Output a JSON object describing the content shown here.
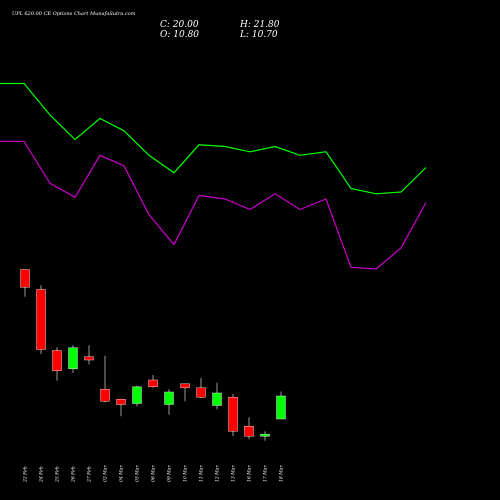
{
  "header": {
    "title": "UPL 620.00 CE Options Chart MunafaSutra.com",
    "ohlc": {
      "open_label": "O: 10.80",
      "high_label": "H: 21.80",
      "low_label": "L: 10.70",
      "close_label": "C: 20.00"
    }
  },
  "colors": {
    "background": "#000000",
    "up": "#00ff00",
    "down": "#ff0000",
    "wick": "#999999",
    "upper_band": "#00ff00",
    "lower_band": "#cc00cc",
    "text": "#ffffff"
  },
  "chart_data": {
    "type": "candlestick",
    "x": [
      "22 Feb",
      "24 Feb",
      "25 Feb",
      "26 Feb",
      "27 Feb",
      "02 Mar",
      "04 Mar",
      "05 Mar",
      "06 Mar",
      "09 Mar",
      "10 Mar",
      "11 Mar",
      "12 Mar",
      "13 Mar",
      "16 Mar",
      "17 Mar",
      "18 Mar"
    ],
    "candles": [
      {
        "date": "22 Feb",
        "open": 70.6,
        "high": 70.6,
        "low": 59.7,
        "close": 63.5
      },
      {
        "date": "24 Feb",
        "open": 62.6,
        "high": 64.3,
        "low": 36.8,
        "close": 38.6
      },
      {
        "date": "25 Feb",
        "open": 38.2,
        "high": 39.5,
        "low": 26.1,
        "close": 30.1
      },
      {
        "date": "26 Feb",
        "open": 30.9,
        "high": 40.3,
        "low": 29.2,
        "close": 39.3
      },
      {
        "date": "27 Feb",
        "open": 35.7,
        "high": 40.3,
        "low": 32.6,
        "close": 34.4
      },
      {
        "date": "02 Mar",
        "open": 22.7,
        "high": 36.1,
        "low": 17.5,
        "close": 17.9
      },
      {
        "date": "04 Mar",
        "open": 18.7,
        "high": 18.7,
        "low": 11.9,
        "close": 16.6
      },
      {
        "date": "05 Mar",
        "open": 17.0,
        "high": 24.1,
        "low": 15.8,
        "close": 23.7
      },
      {
        "date": "06 Mar",
        "open": 26.4,
        "high": 28.4,
        "low": 23.3,
        "close": 23.7
      },
      {
        "date": "09 Mar",
        "open": 16.6,
        "high": 22.7,
        "low": 12.5,
        "close": 21.6
      },
      {
        "date": "10 Mar",
        "open": 24.9,
        "high": 24.9,
        "low": 17.9,
        "close": 23.3
      },
      {
        "date": "11 Mar",
        "open": 23.3,
        "high": 27.2,
        "low": 19.1,
        "close": 19.5
      },
      {
        "date": "12 Mar",
        "open": 16.2,
        "high": 25.3,
        "low": 14.7,
        "close": 21.2
      },
      {
        "date": "13 Mar",
        "open": 19.5,
        "high": 20.8,
        "low": 4.0,
        "close": 5.9
      },
      {
        "date": "16 Mar",
        "open": 7.9,
        "high": 11.5,
        "low": 2.7,
        "close": 3.9
      },
      {
        "date": "17 Mar",
        "open": 3.9,
        "high": 5.9,
        "low": 2.1,
        "close": 4.7
      },
      {
        "date": "18 Mar",
        "open": 10.8,
        "high": 21.8,
        "low": 10.7,
        "close": 20.0
      }
    ],
    "bands": [
      {
        "name": "upper",
        "points_x": [
          0,
          24,
          50,
          75,
          100,
          124,
          149,
          174,
          199,
          225,
          250,
          275,
          300,
          326,
          351,
          376,
          401,
          426
        ],
        "points_y": [
          78,
          78,
          60,
          46,
          58,
          51,
          37,
          27,
          43,
          42,
          39,
          42,
          37,
          39,
          18,
          15,
          16,
          30
        ]
      },
      {
        "name": "lower",
        "points_x": [
          0,
          24,
          50,
          75,
          100,
          124,
          149,
          174,
          199,
          225,
          250,
          275,
          300,
          326,
          351,
          376,
          401,
          426
        ],
        "points_y": [
          45,
          45,
          21,
          13,
          37,
          31,
          3,
          -14,
          14,
          12,
          6,
          15,
          6,
          12,
          -27,
          -28,
          -16,
          10
        ]
      }
    ],
    "ylim": [
      0,
      100
    ],
    "grid": false
  }
}
